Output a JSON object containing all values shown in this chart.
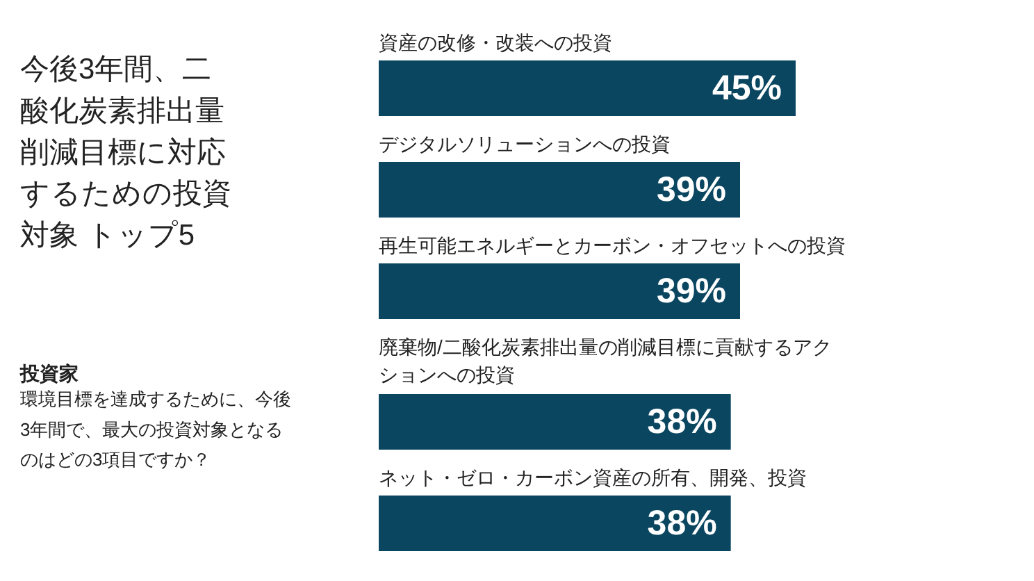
{
  "chart_data": {
    "type": "bar",
    "orientation": "horizontal",
    "title": "今後3年間、二酸化炭素排出量削減目標に対応するための投資対象 トップ5",
    "subtitle": "投資家",
    "annotations": [
      "環境目標を達成するために、今後3年間で、最大の投資対象となるのはどの3項目ですか？"
    ],
    "categories": [
      "資産の改修・改装への投資",
      "デジタルソリューションへの投資",
      "再生可能エネルギーとカーボン・オフセットへの投資",
      "廃棄物/二酸化炭素排出量の削減目標に貢献するアクションへの投資",
      "ネット・ゼロ・カーボン資産の所有、開発、投資"
    ],
    "values": [
      45,
      39,
      39,
      38,
      38
    ],
    "value_labels": [
      "45%",
      "39%",
      "39%",
      "38%",
      "38%"
    ],
    "color": "#0b4660",
    "grid": false
  }
}
